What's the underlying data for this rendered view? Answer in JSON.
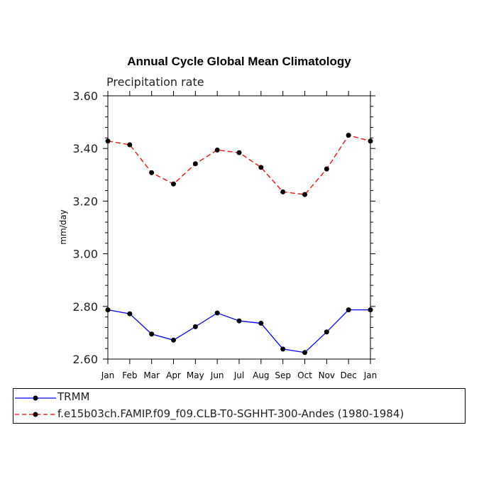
{
  "chart_data": {
    "type": "line",
    "title": "Annual Cycle Global Mean Climatology",
    "subtitle": "Precipitation rate",
    "xlabel": "",
    "ylabel": "mm/day",
    "categories": [
      "Jan",
      "Feb",
      "Mar",
      "Apr",
      "May",
      "Jun",
      "Jul",
      "Aug",
      "Sep",
      "Oct",
      "Nov",
      "Dec",
      "Jan"
    ],
    "ylim": [
      2.6,
      3.6
    ],
    "yticks": [
      2.6,
      2.8,
      3.0,
      3.2,
      3.4,
      3.6
    ],
    "ytick_labels": [
      "2.60",
      "2.80",
      "3.00",
      "3.20",
      "3.40",
      "3.60"
    ],
    "series": [
      {
        "name": "TRMM",
        "color": "#0000ff",
        "style": "solid",
        "values": [
          2.787,
          2.772,
          2.695,
          2.672,
          2.723,
          2.775,
          2.745,
          2.736,
          2.638,
          2.625,
          2.703,
          2.787,
          2.787
        ]
      },
      {
        "name": "f.e15b03ch.FAMIP.f09_f09.CLB-T0-SGHHT-300-Andes (1980-1984)",
        "color": "#ff0000",
        "style": "dashed",
        "values": [
          3.428,
          3.414,
          3.308,
          3.265,
          3.342,
          3.394,
          3.384,
          3.328,
          3.235,
          3.225,
          3.322,
          3.45,
          3.428
        ]
      }
    ]
  }
}
